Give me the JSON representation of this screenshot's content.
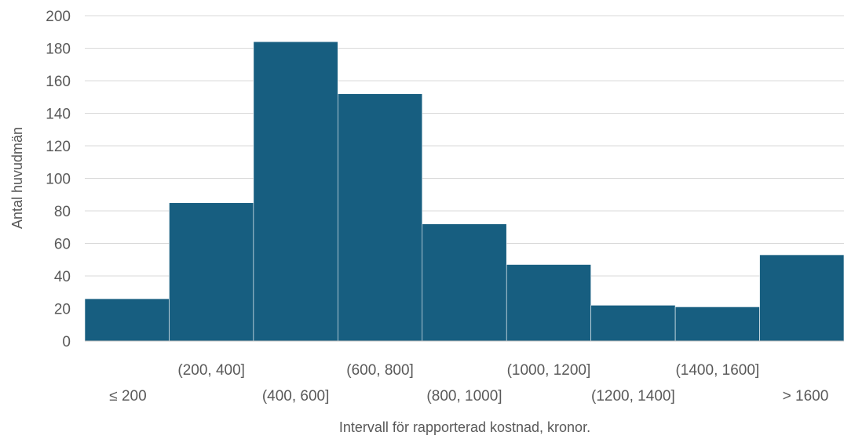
{
  "chart_data": {
    "type": "bar",
    "title": "",
    "xlabel": "Intervall för rapporterad kostnad, kronor.",
    "ylabel": "Antal huvudmän",
    "ylim": [
      0,
      200
    ],
    "yticks": [
      "0",
      "20",
      "40",
      "60",
      "80",
      "100",
      "120",
      "140",
      "160",
      "180",
      "200"
    ],
    "categories": [
      "≤ 200",
      "(200, 400]",
      "(400, 600]",
      "(600, 800]",
      "(800, 1000]",
      "(1000, 1200]",
      "(1200, 1400]",
      "(1400, 1600]",
      "> 1600"
    ],
    "values": [
      26,
      85,
      184,
      152,
      72,
      47,
      22,
      21,
      53
    ],
    "grid": true,
    "bar_color": "#175e80"
  }
}
